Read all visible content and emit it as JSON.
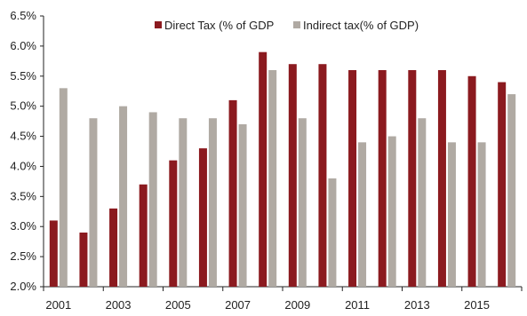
{
  "chart_data": {
    "type": "bar",
    "title": "",
    "xlabel": "",
    "ylabel": "",
    "categories": [
      "2001",
      "2002",
      "2003",
      "2004",
      "2005",
      "2006",
      "2007",
      "2008",
      "2009",
      "2010",
      "2011",
      "2012",
      "2013",
      "2014",
      "2015",
      "2016"
    ],
    "x_tick_labels": [
      "2001",
      "",
      "2003",
      "",
      "2005",
      "",
      "2007",
      "",
      "2009",
      "",
      "2011",
      "",
      "2013",
      "",
      "2015",
      ""
    ],
    "ylim": [
      2.0,
      6.5
    ],
    "y_ticks": [
      "2.0%",
      "2.5%",
      "3.0%",
      "3.5%",
      "4.0%",
      "4.5%",
      "5.0%",
      "5.5%",
      "6.0%",
      "6.5%"
    ],
    "legend_position": "top",
    "grid": false,
    "series": [
      {
        "name": "Direct Tax (% of GDP",
        "color": "#8b1a1f",
        "values": [
          3.1,
          2.9,
          3.3,
          3.7,
          4.1,
          4.3,
          5.1,
          5.9,
          5.7,
          5.7,
          5.6,
          5.6,
          5.6,
          5.6,
          5.5,
          5.4
        ]
      },
      {
        "name": "Indirect tax(% of GDP)",
        "color": "#b0aaa3",
        "values": [
          5.3,
          4.8,
          5.0,
          4.9,
          4.8,
          4.8,
          4.7,
          5.6,
          4.8,
          3.8,
          4.4,
          4.5,
          4.8,
          4.4,
          4.4,
          5.2
        ]
      }
    ]
  }
}
